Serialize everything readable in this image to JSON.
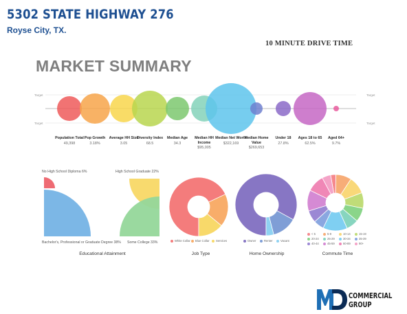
{
  "header": {
    "title": "5302 STATE HIGHWAY 276",
    "subtitle": "Royse City, TX.",
    "drive_time": "10 MINUTE DRIVE TIME",
    "section_title": "MARKET SUMMARY"
  },
  "bubble_chart": {
    "target_label": "Target",
    "metrics": [
      {
        "label": "Population Total",
        "value": "49,398",
        "color": "#ee5a5a"
      },
      {
        "label": "Pop Growth",
        "value": "3.18%",
        "color": "#f7a44a"
      },
      {
        "label": "Average HH Size",
        "value": "3.05",
        "color": "#f8d64c"
      },
      {
        "label": "Diversity Index",
        "value": "68.5",
        "color": "#b9d64f"
      },
      {
        "label": "Median Age",
        "value": "34.3",
        "color": "#7cc86f"
      },
      {
        "label": "Median HH Income",
        "value": "$95,005",
        "color": "#84d2ba"
      },
      {
        "label": "Median Net Worth",
        "value": "$322,169",
        "color": "#5ec4ec"
      },
      {
        "label": "Median Home Value",
        "value": "$269,653",
        "color": "#6f80cf"
      },
      {
        "label": "Under 18",
        "value": "27.8%",
        "color": "#8b6ac8"
      },
      {
        "label": "Ages 18 to 65",
        "value": "62.5%",
        "color": "#c667c4"
      },
      {
        "label": "Aged 64+",
        "value": "9.7%",
        "color": "#e95c9e"
      }
    ]
  },
  "education": {
    "section_label": "Educational Attainment",
    "categories": [
      {
        "label": "No High School Diploma 6%",
        "value": 6,
        "color": "#ee6b73"
      },
      {
        "label": "High School Graduate 22%",
        "value": 22,
        "color": "#f8da6e"
      },
      {
        "label": "Some College 33%",
        "value": 33,
        "color": "#95d79a"
      },
      {
        "label": "Bachelor's, Professional or Graduate Degree 38%",
        "value": 38,
        "color": "#7cb7e6"
      }
    ]
  },
  "job_type": {
    "section_label": "Job Type",
    "slices": [
      {
        "label": "White Collar",
        "value": 68,
        "color": "#f47c7c"
      },
      {
        "label": "Blue Collar",
        "value": 18,
        "color": "#f8ad6a"
      },
      {
        "label": "Services",
        "value": 14,
        "color": "#f8d96a"
      }
    ]
  },
  "home_ownership": {
    "section_label": "Home Ownership",
    "slices": [
      {
        "label": "Owner",
        "value": 83,
        "color": "#8776c4"
      },
      {
        "label": "Renter",
        "value": 13,
        "color": "#7f9ed6"
      },
      {
        "label": "Vacant",
        "value": 4,
        "color": "#8fd2f2"
      }
    ]
  },
  "commute": {
    "section_label": "Commute Time",
    "slices": [
      {
        "label": "< 5",
        "value": 3,
        "color": "#f6888d"
      },
      {
        "label": "5-9",
        "value": 9,
        "color": "#f7ad78"
      },
      {
        "label": "10-14",
        "value": 10,
        "color": "#f9d879"
      },
      {
        "label": "15-19",
        "value": 9,
        "color": "#c0dc78"
      },
      {
        "label": "20-24",
        "value": 8,
        "color": "#8ad58a"
      },
      {
        "label": "25-29",
        "value": 7,
        "color": "#87d5bf"
      },
      {
        "label": "30-34",
        "value": 14,
        "color": "#7fcff2"
      },
      {
        "label": "35-39",
        "value": 6,
        "color": "#8aa7e0"
      },
      {
        "label": "40-44",
        "value": 7,
        "color": "#9b88d4"
      },
      {
        "label": "45-59",
        "value": 12,
        "color": "#d58ad4"
      },
      {
        "label": "60-89",
        "value": 10,
        "color": "#f087b6"
      },
      {
        "label": "90+",
        "value": 5,
        "color": "#f4a3c7"
      }
    ]
  },
  "logo": {
    "line1": "COMMERCIAL",
    "line2": "GROUP",
    "mark_color": "#1f6fb5"
  }
}
